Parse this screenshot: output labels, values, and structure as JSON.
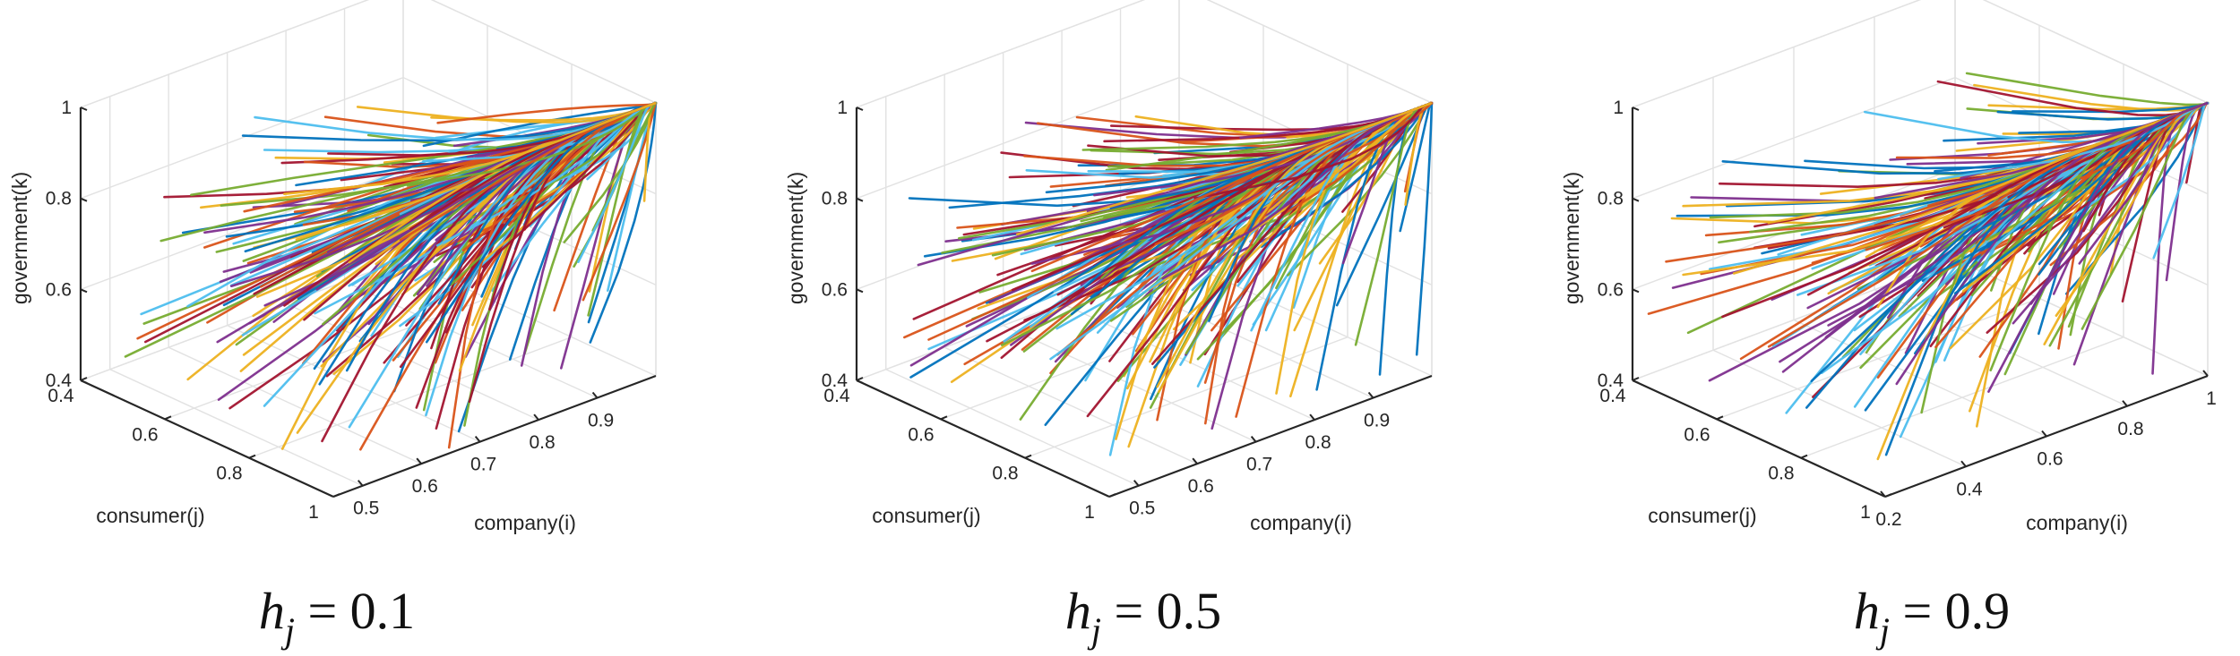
{
  "colors": [
    "#0072BD",
    "#D95319",
    "#EDB120",
    "#7E2F8E",
    "#77AC30",
    "#4DBEEE",
    "#A2142F"
  ],
  "chart_data": [
    {
      "type": "line3d",
      "caption": {
        "var": "h",
        "sub": "j",
        "eq": " = ",
        "value": "0.1"
      },
      "xlabel": "company(i)",
      "ylabel": "consumer(j)",
      "zlabel": "government(k)",
      "xlim": [
        0.45,
        1.0
      ],
      "ylim": [
        0.4,
        1.0
      ],
      "zlim": [
        0.4,
        1.0
      ],
      "xticks": [
        0.5,
        0.6,
        0.7,
        0.8,
        0.9
      ],
      "xticklabels": [
        "0.5",
        "0.6",
        "0.7",
        "0.8",
        "0.9"
      ],
      "yticks": [
        0.4,
        0.6,
        0.8,
        1.0
      ],
      "yticklabels": [
        "0.4",
        "0.6",
        "0.8",
        "1"
      ],
      "zticks": [
        0.4,
        0.6,
        0.8,
        1.0
      ],
      "zticklabels": [
        "0.4",
        "0.6",
        "0.8",
        "1"
      ],
      "grid": true,
      "series_count": 220,
      "converges_to": [
        1,
        1,
        1
      ],
      "initial_i_range": [
        0.45,
        1.0
      ],
      "initial_j_range": [
        0.4,
        1.0
      ],
      "initial_k_range": [
        0.4,
        1.0
      ],
      "curvature": 0.45
    },
    {
      "type": "line3d",
      "caption": {
        "var": "h",
        "sub": "j",
        "eq": " = ",
        "value": "0.5"
      },
      "xlabel": "company(i)",
      "ylabel": "consumer(j)",
      "zlabel": "government(k)",
      "xlim": [
        0.45,
        1.0
      ],
      "ylim": [
        0.4,
        1.0
      ],
      "zlim": [
        0.4,
        1.0
      ],
      "xticks": [
        0.5,
        0.6,
        0.7,
        0.8,
        0.9
      ],
      "xticklabels": [
        "0.5",
        "0.6",
        "0.7",
        "0.8",
        "0.9"
      ],
      "yticks": [
        0.4,
        0.6,
        0.8,
        1.0
      ],
      "yticklabels": [
        "0.4",
        "0.6",
        "0.8",
        "1"
      ],
      "zticks": [
        0.4,
        0.6,
        0.8,
        1.0
      ],
      "zticklabels": [
        "0.4",
        "0.6",
        "0.8",
        "1"
      ],
      "grid": true,
      "series_count": 220,
      "converges_to": [
        1,
        1,
        1
      ],
      "initial_i_range": [
        0.45,
        1.0
      ],
      "initial_j_range": [
        0.4,
        1.0
      ],
      "initial_k_range": [
        0.4,
        1.0
      ],
      "curvature": 0.7
    },
    {
      "type": "line3d",
      "caption": {
        "var": "h",
        "sub": "j",
        "eq": " = ",
        "value": "0.9"
      },
      "xlabel": "company(i)",
      "ylabel": "consumer(j)",
      "zlabel": "government(k)",
      "xlim": [
        0.2,
        1.0
      ],
      "ylim": [
        0.4,
        1.0
      ],
      "zlim": [
        0.4,
        1.0
      ],
      "xticks": [
        0.2,
        0.4,
        0.6,
        0.8,
        1.0
      ],
      "xticklabels": [
        "0.2",
        "0.4",
        "0.6",
        "0.8",
        "1"
      ],
      "yticks": [
        0.4,
        0.6,
        0.8,
        1.0
      ],
      "yticklabels": [
        "0.4",
        "0.6",
        "0.8",
        "1"
      ],
      "zticks": [
        0.4,
        0.6,
        0.8,
        1.0
      ],
      "zticklabels": [
        "0.4",
        "0.6",
        "0.8",
        "1"
      ],
      "grid": true,
      "series_count": 200,
      "converges_to": [
        1,
        1,
        1
      ],
      "initial_i_range": [
        0.2,
        1.0
      ],
      "initial_j_range": [
        0.4,
        1.0
      ],
      "initial_k_range": [
        0.4,
        1.0
      ],
      "curvature": 0.9
    }
  ]
}
